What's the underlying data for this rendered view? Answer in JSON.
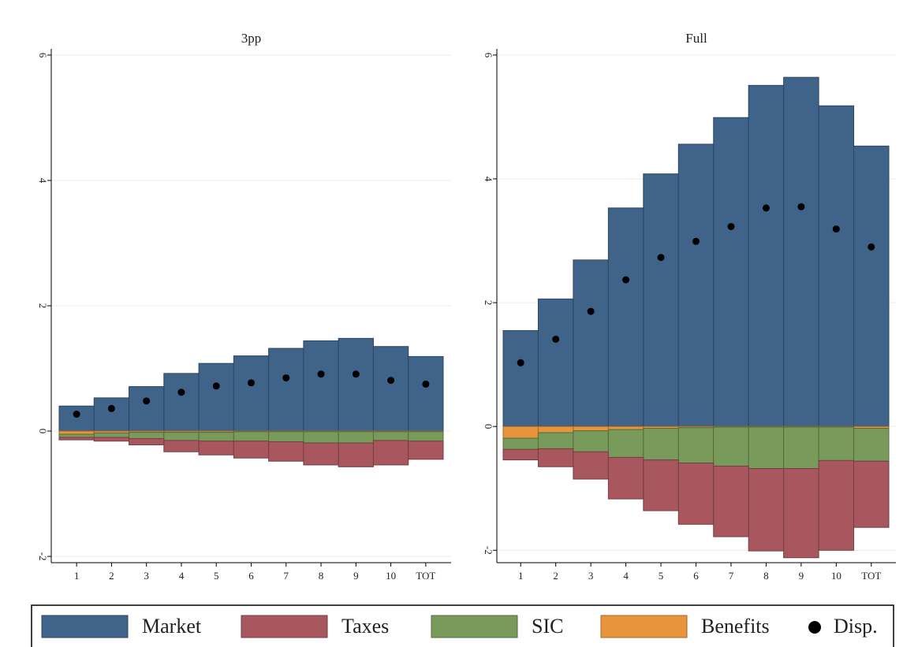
{
  "chart_data": [
    {
      "type": "bar",
      "stacked": true,
      "title": "3pp",
      "categories": [
        "1",
        "2",
        "3",
        "4",
        "5",
        "6",
        "7",
        "8",
        "9",
        "10",
        "TOT"
      ],
      "series": [
        {
          "name": "Market",
          "color": "#3f6389",
          "values": [
            0.4,
            0.53,
            0.71,
            0.92,
            1.08,
            1.2,
            1.32,
            1.44,
            1.48,
            1.35,
            1.19
          ]
        },
        {
          "name": "Taxes",
          "color": "#a8575f",
          "values": [
            -0.04,
            -0.06,
            -0.1,
            -0.18,
            -0.22,
            -0.27,
            -0.31,
            -0.35,
            -0.38,
            -0.39,
            -0.29
          ]
        },
        {
          "name": "SIC",
          "color": "#789a5a",
          "values": [
            -0.05,
            -0.07,
            -0.1,
            -0.13,
            -0.14,
            -0.15,
            -0.16,
            -0.18,
            -0.18,
            -0.14,
            -0.15
          ]
        },
        {
          "name": "Benefits",
          "color": "#e8943a",
          "values": [
            -0.05,
            -0.03,
            -0.02,
            -0.02,
            -0.02,
            -0.01,
            -0.01,
            -0.01,
            -0.01,
            -0.01,
            -0.01
          ]
        },
        {
          "name": "Disp.",
          "type": "scatter",
          "color": "#000000",
          "values": [
            0.27,
            0.36,
            0.48,
            0.62,
            0.72,
            0.77,
            0.85,
            0.91,
            0.91,
            0.81,
            0.75
          ]
        }
      ],
      "ylim": [
        -2.1,
        6.1
      ],
      "yticks": [
        -2,
        0,
        2,
        4,
        6
      ],
      "grid": true
    },
    {
      "type": "bar",
      "stacked": true,
      "title": "Full",
      "categories": [
        "1",
        "2",
        "3",
        "4",
        "5",
        "6",
        "7",
        "8",
        "9",
        "10",
        "TOT"
      ],
      "series": [
        {
          "name": "Market",
          "color": "#3f6389",
          "values": [
            1.55,
            2.06,
            2.69,
            3.53,
            4.08,
            4.56,
            4.99,
            5.51,
            5.64,
            5.18,
            4.53
          ]
        },
        {
          "name": "Taxes",
          "color": "#a8575f",
          "values": [
            -0.17,
            -0.29,
            -0.44,
            -0.67,
            -0.82,
            -0.99,
            -1.14,
            -1.33,
            -1.44,
            -1.45,
            -1.07
          ]
        },
        {
          "name": "SIC",
          "color": "#789a5a",
          "values": [
            -0.18,
            -0.26,
            -0.34,
            -0.45,
            -0.51,
            -0.57,
            -0.63,
            -0.67,
            -0.67,
            -0.54,
            -0.53
          ]
        },
        {
          "name": "Benefits",
          "color": "#e8943a",
          "values": [
            -0.19,
            -0.1,
            -0.07,
            -0.05,
            -0.03,
            -0.02,
            -0.01,
            -0.01,
            -0.01,
            -0.01,
            -0.03
          ]
        },
        {
          "name": "Disp.",
          "type": "scatter",
          "color": "#000000",
          "values": [
            1.03,
            1.41,
            1.86,
            2.37,
            2.73,
            2.99,
            3.23,
            3.53,
            3.55,
            3.19,
            2.9
          ]
        }
      ],
      "ylim": [
        -2.2,
        6.1
      ],
      "yticks": [
        -2,
        0,
        2,
        4,
        6
      ],
      "grid": true
    }
  ]
}
